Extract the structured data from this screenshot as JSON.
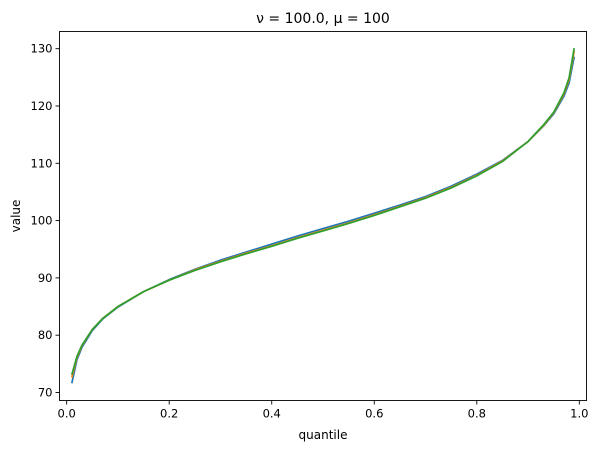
{
  "chart_data": {
    "type": "line",
    "title": "ν = 100.0, μ = 100",
    "xlabel": "quantile",
    "ylabel": "value",
    "xlim": [
      -0.014,
      1.014
    ],
    "ylim": [
      68.6,
      133.0
    ],
    "xticks": [
      0.0,
      0.2,
      0.4,
      0.6,
      0.8,
      1.0
    ],
    "xtick_labels": [
      "0.0",
      "0.2",
      "0.4",
      "0.6",
      "0.8",
      "1.0"
    ],
    "yticks": [
      70,
      80,
      90,
      100,
      110,
      120,
      130
    ],
    "ytick_labels": [
      "70",
      "80",
      "90",
      "100",
      "110",
      "120",
      "130"
    ],
    "grid": false,
    "series": [
      {
        "color": "#1f77b4",
        "x": [
          0.01,
          0.02,
          0.03,
          0.05,
          0.07,
          0.1,
          0.15,
          0.2,
          0.25,
          0.3,
          0.35,
          0.4,
          0.45,
          0.5,
          0.55,
          0.6,
          0.65,
          0.7,
          0.75,
          0.8,
          0.85,
          0.9,
          0.93,
          0.95,
          0.97,
          0.98,
          0.99
        ],
        "y": [
          71.6,
          75.7,
          77.9,
          80.8,
          82.8,
          84.9,
          87.6,
          89.7,
          91.5,
          93.1,
          94.5,
          95.9,
          97.3,
          98.6,
          99.9,
          101.3,
          102.7,
          104.2,
          106.0,
          108.1,
          110.5,
          113.8,
          116.5,
          118.6,
          121.7,
          124.0,
          128.6
        ]
      },
      {
        "color": "#ff7f0e",
        "x": [
          0.01,
          0.02,
          0.03,
          0.05,
          0.07,
          0.1,
          0.15,
          0.2,
          0.25,
          0.3,
          0.35,
          0.4,
          0.45,
          0.5,
          0.55,
          0.6,
          0.65,
          0.7,
          0.75,
          0.8,
          0.85,
          0.9,
          0.93,
          0.95,
          0.97,
          0.98,
          0.99
        ],
        "y": [
          72.6,
          76.1,
          78.2,
          81.0,
          82.9,
          85.0,
          87.6,
          89.6,
          91.4,
          92.9,
          94.3,
          95.6,
          97.0,
          98.3,
          99.6,
          101.0,
          102.5,
          104.0,
          105.8,
          107.9,
          110.4,
          113.8,
          116.6,
          118.8,
          122.1,
          124.6,
          129.6
        ]
      },
      {
        "color": "#2ca02c",
        "x": [
          0.01,
          0.02,
          0.03,
          0.05,
          0.07,
          0.1,
          0.15,
          0.2,
          0.25,
          0.3,
          0.35,
          0.4,
          0.45,
          0.5,
          0.55,
          0.6,
          0.65,
          0.7,
          0.75,
          0.8,
          0.85,
          0.9,
          0.93,
          0.95,
          0.97,
          0.98,
          0.99
        ],
        "y": [
          73.1,
          76.3,
          78.3,
          81.0,
          82.9,
          85.0,
          87.6,
          89.6,
          91.3,
          92.8,
          94.2,
          95.5,
          96.9,
          98.2,
          99.5,
          100.9,
          102.4,
          103.9,
          105.7,
          107.8,
          110.3,
          113.8,
          116.7,
          118.9,
          122.3,
          124.9,
          130.1
        ]
      }
    ]
  }
}
